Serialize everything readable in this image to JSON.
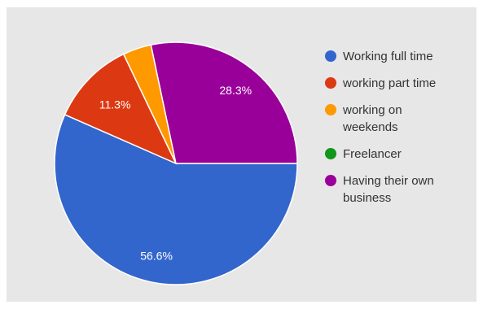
{
  "chart_data": {
    "type": "pie",
    "legend_position": "right",
    "slices": [
      {
        "label_lines": [
          "Working full time"
        ],
        "value": 56.6,
        "color": "#3366cc",
        "pct_label": "56.6%"
      },
      {
        "label_lines": [
          "working part time"
        ],
        "value": 11.3,
        "color": "#dc3912",
        "pct_label": "11.3%"
      },
      {
        "label_lines": [
          "working on",
          "weekends"
        ],
        "value": 3.8,
        "color": "#ff9900",
        "pct_label": ""
      },
      {
        "label_lines": [
          "Freelancer"
        ],
        "value": 0,
        "color": "#109618",
        "pct_label": ""
      },
      {
        "label_lines": [
          "Having their own",
          "business"
        ],
        "value": 28.3,
        "color": "#990099",
        "pct_label": "28.3%"
      }
    ]
  }
}
